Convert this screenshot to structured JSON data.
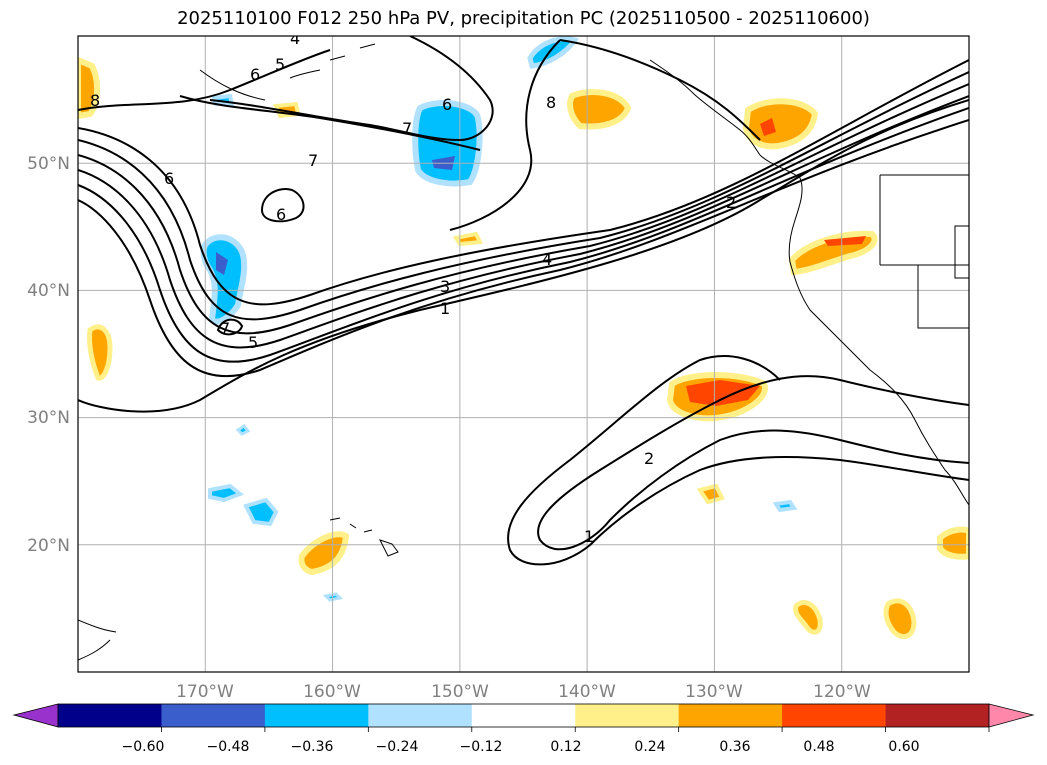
{
  "title": "2025110100 F012 250 hPa PV, precipitation PC (2025110500 - 2025110600)",
  "map": {
    "extent": {
      "lon_min": -180,
      "lon_max": -110,
      "lat_min": 10,
      "lat_max": 60
    },
    "lat_ticks": [
      {
        "lat": 50,
        "label": "50°N"
      },
      {
        "lat": 40,
        "label": "40°N"
      },
      {
        "lat": 30,
        "label": "30°N"
      },
      {
        "lat": 20,
        "label": "20°N"
      }
    ],
    "lon_ticks": [
      {
        "lon": -170,
        "label": "170°W"
      },
      {
        "lon": -160,
        "label": "160°W"
      },
      {
        "lon": -150,
        "label": "150°W"
      },
      {
        "lon": -140,
        "label": "140°W"
      },
      {
        "lon": -130,
        "label": "130°W"
      },
      {
        "lon": -120,
        "label": "120°W"
      }
    ],
    "pv_contour_labels": [
      "8",
      "6",
      "5",
      "7",
      "6",
      "6",
      "8",
      "7",
      "6",
      "2",
      "4",
      "3",
      "1",
      "5",
      "2",
      "1",
      "4",
      "7"
    ]
  },
  "colorbar": {
    "colors": [
      "#9932cc",
      "#00008b",
      "#3a5fcd",
      "#00bfff",
      "#b0e2ff",
      "#ffffff",
      "#fff08a",
      "#ffa500",
      "#ff4500",
      "#b22222",
      "#ff88aa"
    ],
    "tick_labels": [
      "−0.60",
      "−0.48",
      "−0.36",
      "−0.24",
      "−0.12",
      "0.12",
      "0.24",
      "0.36",
      "0.48",
      "0.60"
    ]
  },
  "colors": {
    "grid": "#b0b0b0",
    "contour": "#000000",
    "land": "#000000"
  }
}
